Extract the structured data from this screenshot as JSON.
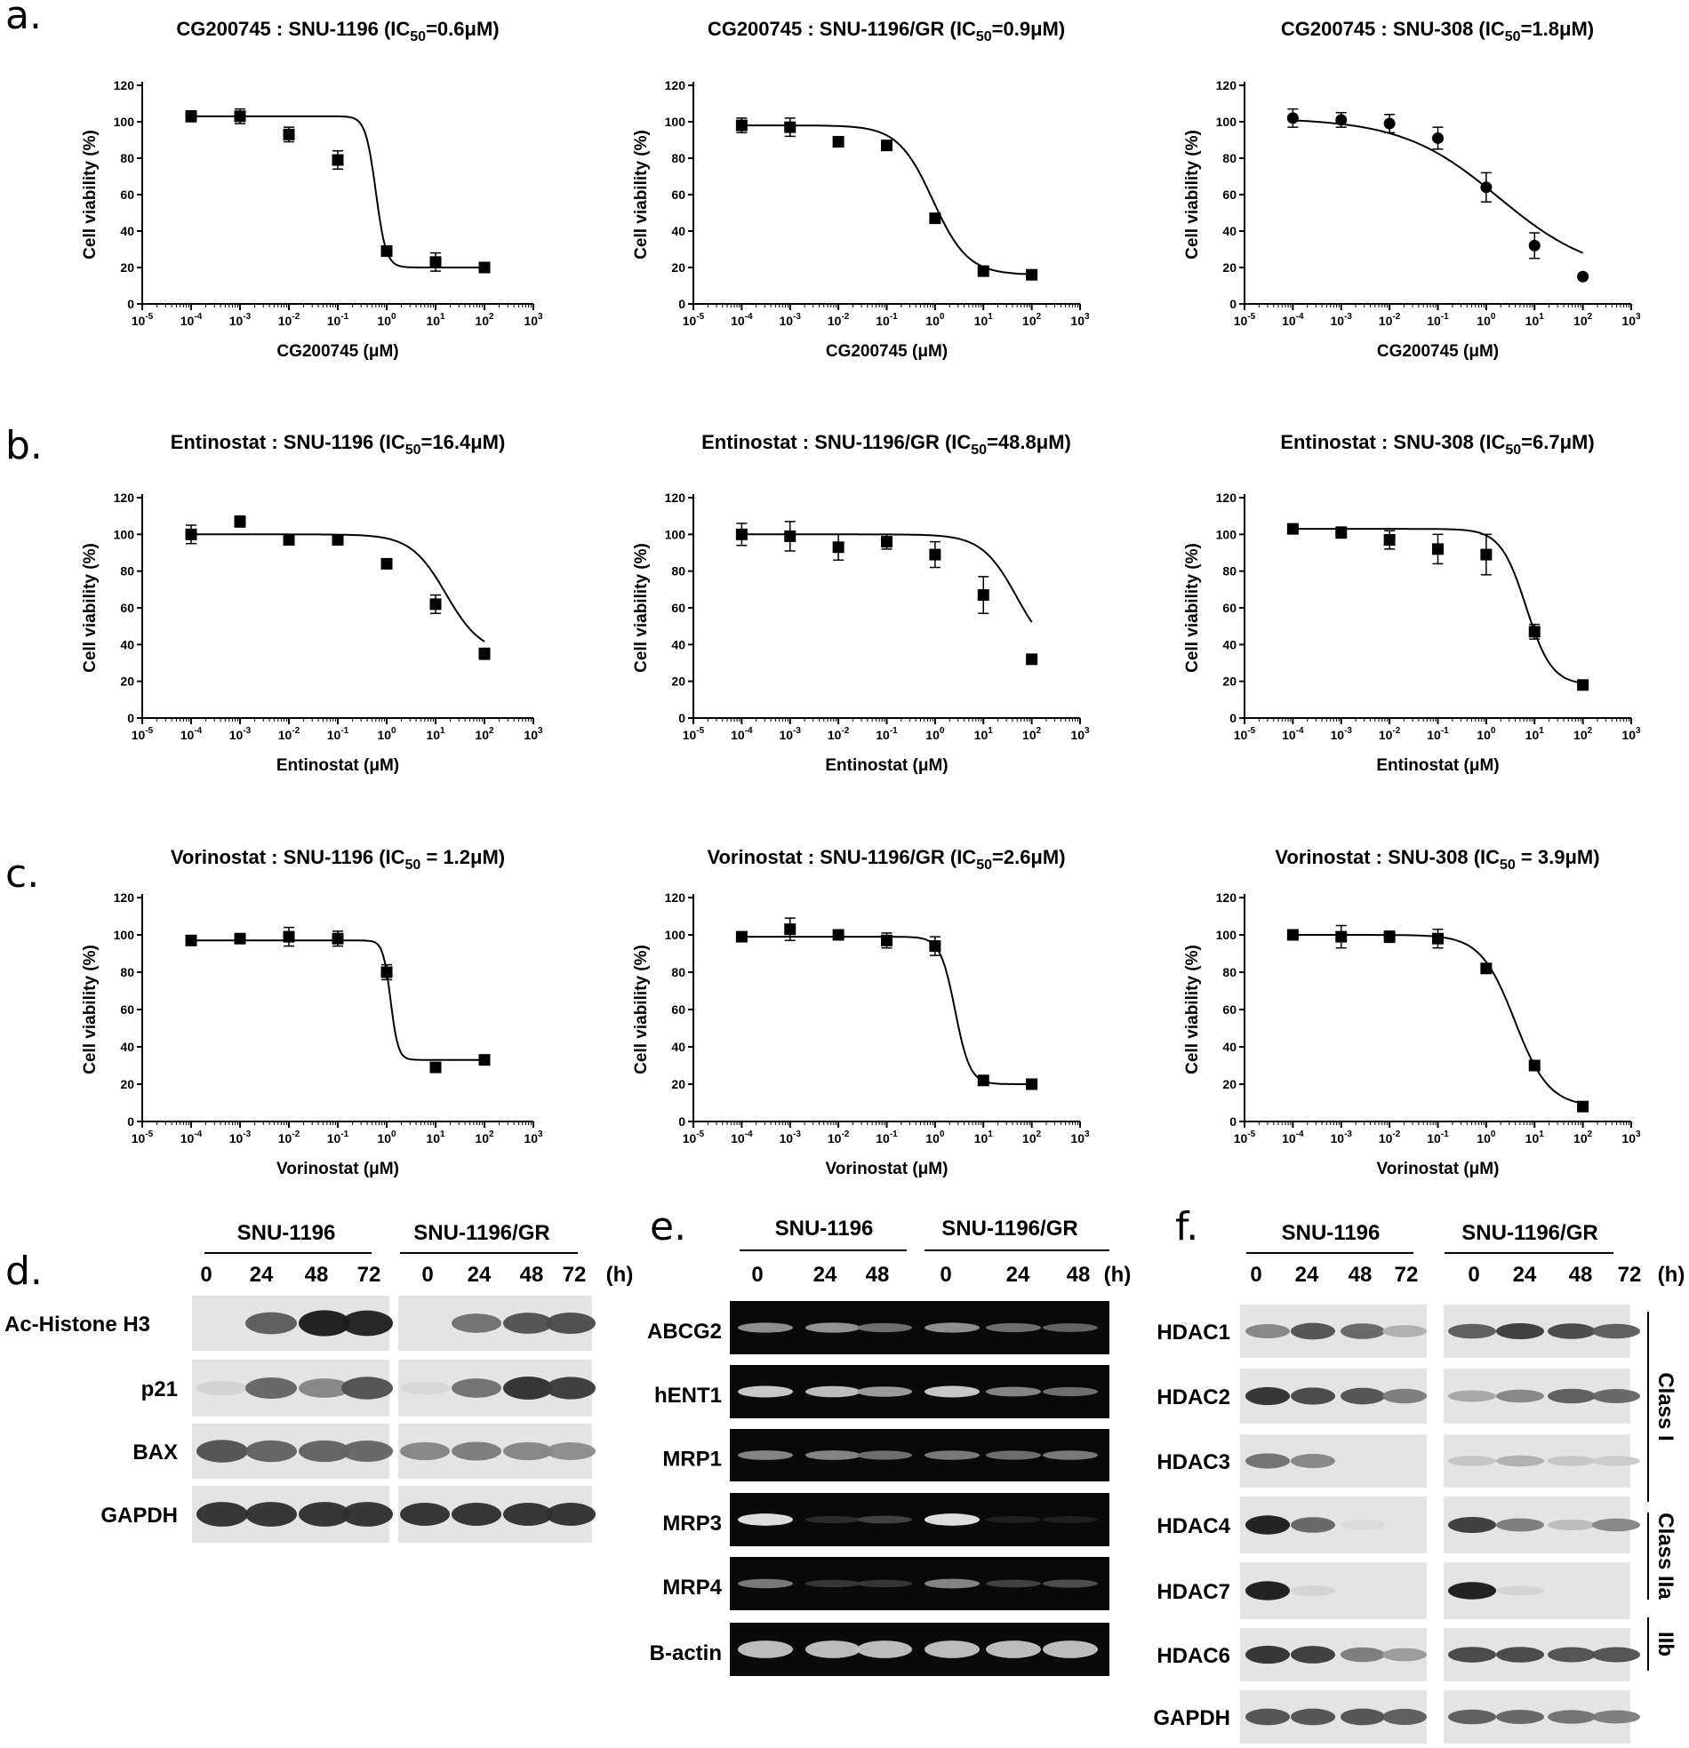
{
  "panels": [
    "a.",
    "b.",
    "c.",
    "d.",
    "e.",
    "f."
  ],
  "chart_data": [
    {
      "type": "line",
      "panel": "a",
      "title_prefix": "CG200745 :  SNU-1196 (IC",
      "title_sub": "50",
      "title_suffix": "=0.6μM)",
      "xlabel": "CG200745 (μM)",
      "ylabel": "Cell viability (%)",
      "x_ticks": [
        "10-5",
        "10-4",
        "10-3",
        "10-2",
        "10-1",
        "100",
        "101",
        "102",
        "103"
      ],
      "y_ticks": [
        "0",
        "20",
        "40",
        "60",
        "80",
        "100",
        "120"
      ],
      "xscale": "log",
      "xlim": [
        1e-05,
        1000
      ],
      "ylim": [
        0,
        120
      ],
      "ic50": 0.6,
      "marker": "square",
      "points": [
        {
          "x": 0.0001,
          "y": 103,
          "err": 3
        },
        {
          "x": 0.001,
          "y": 103,
          "err": 4
        },
        {
          "x": 0.01,
          "y": 93,
          "err": 4
        },
        {
          "x": 0.1,
          "y": 79,
          "err": 5
        },
        {
          "x": 1,
          "y": 29,
          "err": 2
        },
        {
          "x": 10,
          "y": 23,
          "err": 5
        },
        {
          "x": 100,
          "y": 20,
          "err": 1
        }
      ]
    },
    {
      "type": "line",
      "panel": "a",
      "title_prefix": "CG200745 : SNU-1196/GR (IC",
      "title_sub": "50",
      "title_suffix": "=0.9μM)",
      "xlabel": "CG200745 (μM)",
      "ylabel": "Cell viability (%)",
      "x_ticks": [
        "10-5",
        "10-4",
        "10-3",
        "10-2",
        "10-1",
        "100",
        "101",
        "102",
        "103"
      ],
      "y_ticks": [
        "0",
        "20",
        "40",
        "60",
        "80",
        "100",
        "120"
      ],
      "xscale": "log",
      "xlim": [
        1e-05,
        1000
      ],
      "ylim": [
        0,
        120
      ],
      "ic50": 0.9,
      "marker": "square",
      "points": [
        {
          "x": 0.0001,
          "y": 98,
          "err": 4
        },
        {
          "x": 0.001,
          "y": 97,
          "err": 5
        },
        {
          "x": 0.01,
          "y": 89,
          "err": 2
        },
        {
          "x": 0.1,
          "y": 87,
          "err": 1
        },
        {
          "x": 1,
          "y": 47,
          "err": 2
        },
        {
          "x": 10,
          "y": 18,
          "err": 1
        },
        {
          "x": 100,
          "y": 16,
          "err": 1
        }
      ]
    },
    {
      "type": "line",
      "panel": "a",
      "title_prefix": "CG200745 : SNU-308 (IC",
      "title_sub": "50",
      "title_suffix": "=1.8μM)",
      "xlabel": "CG200745 (μM)",
      "ylabel": "Cell viability (%)",
      "x_ticks": [
        "10-5",
        "10-4",
        "10-3",
        "10-2",
        "10-1",
        "100",
        "101",
        "102",
        "103"
      ],
      "y_ticks": [
        "0",
        "20",
        "40",
        "60",
        "80",
        "100",
        "120"
      ],
      "xscale": "log",
      "xlim": [
        1e-05,
        1000
      ],
      "ylim": [
        0,
        120
      ],
      "ic50": 1.8,
      "marker": "circle",
      "points": [
        {
          "x": 0.0001,
          "y": 102,
          "err": 5
        },
        {
          "x": 0.001,
          "y": 101,
          "err": 4
        },
        {
          "x": 0.01,
          "y": 99,
          "err": 5
        },
        {
          "x": 0.1,
          "y": 91,
          "err": 6
        },
        {
          "x": 1,
          "y": 64,
          "err": 8
        },
        {
          "x": 10,
          "y": 32,
          "err": 7
        },
        {
          "x": 100,
          "y": 15,
          "err": 1
        }
      ]
    },
    {
      "type": "line",
      "panel": "b",
      "title_prefix": "Entinostat : SNU-1196 (IC",
      "title_sub": "50",
      "title_suffix": "=16.4μM)",
      "xlabel": "Entinostat (μM)",
      "ylabel": "Cell viability (%)",
      "x_ticks": [
        "10-5",
        "10-4",
        "10-3",
        "10-2",
        "10-1",
        "100",
        "101",
        "102",
        "103"
      ],
      "y_ticks": [
        "0",
        "20",
        "40",
        "60",
        "80",
        "100",
        "120"
      ],
      "xscale": "log",
      "xlim": [
        1e-05,
        1000
      ],
      "ylim": [
        0,
        120
      ],
      "ic50": 16.4,
      "marker": "square",
      "points": [
        {
          "x": 0.0001,
          "y": 100,
          "err": 5
        },
        {
          "x": 0.001,
          "y": 107,
          "err": 3
        },
        {
          "x": 0.01,
          "y": 97,
          "err": 2
        },
        {
          "x": 0.1,
          "y": 97,
          "err": 2
        },
        {
          "x": 1,
          "y": 84,
          "err": 2
        },
        {
          "x": 10,
          "y": 62,
          "err": 5
        },
        {
          "x": 100,
          "y": 35,
          "err": 3
        }
      ]
    },
    {
      "type": "line",
      "panel": "b",
      "title_prefix": "Entinostat : SNU-1196/GR (IC",
      "title_sub": "50",
      "title_suffix": "=48.8μM)",
      "xlabel": "Entinostat (μM)",
      "ylabel": "Cell viability (%)",
      "x_ticks": [
        "10-5",
        "10-4",
        "10-3",
        "10-2",
        "10-1",
        "100",
        "101",
        "102",
        "103"
      ],
      "y_ticks": [
        "0",
        "20",
        "40",
        "60",
        "80",
        "100",
        "120"
      ],
      "xscale": "log",
      "xlim": [
        1e-05,
        1000
      ],
      "ylim": [
        0,
        120
      ],
      "ic50": 48.8,
      "marker": "square",
      "points": [
        {
          "x": 0.0001,
          "y": 100,
          "err": 6
        },
        {
          "x": 0.001,
          "y": 99,
          "err": 8
        },
        {
          "x": 0.01,
          "y": 93,
          "err": 7
        },
        {
          "x": 0.1,
          "y": 96,
          "err": 4
        },
        {
          "x": 1,
          "y": 89,
          "err": 7
        },
        {
          "x": 10,
          "y": 67,
          "err": 10
        },
        {
          "x": 100,
          "y": 32,
          "err": 2
        }
      ]
    },
    {
      "type": "line",
      "panel": "b",
      "title_prefix": "Entinostat : SNU-308 (IC",
      "title_sub": "50",
      "title_suffix": "=6.7μM)",
      "xlabel": "Entinostat (μM)",
      "ylabel": "Cell viability (%)",
      "x_ticks": [
        "10-5",
        "10-4",
        "10-3",
        "10-2",
        "10-1",
        "100",
        "101",
        "102",
        "103"
      ],
      "y_ticks": [
        "0",
        "20",
        "40",
        "60",
        "80",
        "100",
        "120"
      ],
      "xscale": "log",
      "xlim": [
        1e-05,
        1000
      ],
      "ylim": [
        0,
        120
      ],
      "ic50": 6.7,
      "marker": "square",
      "points": [
        {
          "x": 0.0001,
          "y": 103,
          "err": 1
        },
        {
          "x": 0.001,
          "y": 101,
          "err": 3
        },
        {
          "x": 0.01,
          "y": 97,
          "err": 5
        },
        {
          "x": 0.1,
          "y": 92,
          "err": 8
        },
        {
          "x": 1,
          "y": 89,
          "err": 11
        },
        {
          "x": 10,
          "y": 47,
          "err": 4
        },
        {
          "x": 100,
          "y": 18,
          "err": 1
        }
      ]
    },
    {
      "type": "line",
      "panel": "c",
      "title_prefix": "Vorinostat : SNU-1196 (IC",
      "title_sub": "50",
      "title_suffix": " = 1.2μM)",
      "xlabel": "Vorinostat (μM)",
      "ylabel": "Cell viability (%)",
      "x_ticks": [
        "10-5",
        "10-4",
        "10-3",
        "10-2",
        "10-1",
        "100",
        "101",
        "102",
        "103"
      ],
      "y_ticks": [
        "0",
        "20",
        "40",
        "60",
        "80",
        "100",
        "120"
      ],
      "xscale": "log",
      "xlim": [
        1e-05,
        1000
      ],
      "ylim": [
        0,
        120
      ],
      "ic50": 1.2,
      "marker": "square",
      "points": [
        {
          "x": 0.0001,
          "y": 97,
          "err": 1
        },
        {
          "x": 0.001,
          "y": 98,
          "err": 2
        },
        {
          "x": 0.01,
          "y": 99,
          "err": 5
        },
        {
          "x": 0.1,
          "y": 98,
          "err": 4
        },
        {
          "x": 1,
          "y": 80,
          "err": 4
        },
        {
          "x": 10,
          "y": 29,
          "err": 1
        },
        {
          "x": 100,
          "y": 33,
          "err": 1
        }
      ]
    },
    {
      "type": "line",
      "panel": "c",
      "title_prefix": "Vorinostat : SNU-1196/GR (IC",
      "title_sub": "50",
      "title_suffix": "=2.6μM)",
      "xlabel": "Vorinostat (μM)",
      "ylabel": "Cell viability (%)",
      "x_ticks": [
        "10-5",
        "10-4",
        "10-3",
        "10-2",
        "10-1",
        "100",
        "101",
        "102",
        "103"
      ],
      "y_ticks": [
        "0",
        "20",
        "40",
        "60",
        "80",
        "100",
        "120"
      ],
      "xscale": "log",
      "xlim": [
        1e-05,
        1000
      ],
      "ylim": [
        0,
        120
      ],
      "ic50": 2.6,
      "marker": "square",
      "points": [
        {
          "x": 0.0001,
          "y": 99,
          "err": 1
        },
        {
          "x": 0.001,
          "y": 103,
          "err": 6
        },
        {
          "x": 0.01,
          "y": 100,
          "err": 1
        },
        {
          "x": 0.1,
          "y": 97,
          "err": 4
        },
        {
          "x": 1,
          "y": 94,
          "err": 5
        },
        {
          "x": 10,
          "y": 22,
          "err": 1
        },
        {
          "x": 100,
          "y": 20,
          "err": 1
        }
      ]
    },
    {
      "type": "line",
      "panel": "c",
      "title_prefix": "Vorinostat : SNU-308 (IC",
      "title_sub": "50",
      "title_suffix": " = 3.9μM)",
      "xlabel": "Vorinostat (μM)",
      "ylabel": "Cell viability (%)",
      "x_ticks": [
        "10-5",
        "10-4",
        "10-3",
        "10-2",
        "10-1",
        "100",
        "101",
        "102",
        "103"
      ],
      "y_ticks": [
        "0",
        "20",
        "40",
        "60",
        "80",
        "100",
        "120"
      ],
      "xscale": "log",
      "xlim": [
        1e-05,
        1000
      ],
      "ylim": [
        0,
        120
      ],
      "ic50": 3.9,
      "marker": "square",
      "points": [
        {
          "x": 0.0001,
          "y": 100,
          "err": 2
        },
        {
          "x": 0.001,
          "y": 99,
          "err": 6
        },
        {
          "x": 0.01,
          "y": 99,
          "err": 3
        },
        {
          "x": 0.1,
          "y": 98,
          "err": 5
        },
        {
          "x": 1,
          "y": 82,
          "err": 2
        },
        {
          "x": 10,
          "y": 30,
          "err": 2
        },
        {
          "x": 100,
          "y": 8,
          "err": 1
        }
      ]
    }
  ],
  "blots": {
    "d": {
      "groups": [
        "SNU-1196",
        "SNU-1196/GR"
      ],
      "timepoints": [
        "0",
        "24",
        "48",
        "72"
      ],
      "unit": "(h)",
      "rows": [
        {
          "label": "Ac-Histone H3",
          "a": [
            0.02,
            0.65,
            0.95,
            0.92
          ],
          "b": [
            0.0,
            0.55,
            0.7,
            0.72
          ]
        },
        {
          "label": "p21",
          "a": [
            0.08,
            0.6,
            0.45,
            0.7
          ],
          "b": [
            0.06,
            0.55,
            0.85,
            0.8
          ]
        },
        {
          "label": "BAX",
          "a": [
            0.7,
            0.62,
            0.62,
            0.6
          ],
          "b": [
            0.45,
            0.5,
            0.45,
            0.42
          ]
        },
        {
          "label": "GAPDH",
          "a": [
            0.85,
            0.85,
            0.85,
            0.85
          ],
          "b": [
            0.85,
            0.85,
            0.85,
            0.85
          ]
        }
      ]
    },
    "e": {
      "groups": [
        "SNU-1196",
        "SNU-1196/GR"
      ],
      "timepoints": [
        "0",
        "24",
        "48",
        "0",
        "24",
        "48"
      ],
      "unit": "(h)",
      "rows": [
        {
          "label": "ABCG2",
          "v": [
            0.6,
            0.62,
            0.45,
            0.6,
            0.45,
            0.4
          ]
        },
        {
          "label": "hENT1",
          "v": [
            0.85,
            0.8,
            0.65,
            0.85,
            0.55,
            0.45
          ]
        },
        {
          "label": "MRP1",
          "v": [
            0.55,
            0.55,
            0.45,
            0.5,
            0.45,
            0.5
          ]
        },
        {
          "label": "MRP3",
          "v": [
            0.95,
            0.15,
            0.25,
            0.95,
            0.1,
            0.1
          ]
        },
        {
          "label": "MRP4",
          "v": [
            0.5,
            0.2,
            0.2,
            0.55,
            0.25,
            0.3
          ]
        },
        {
          "label": "B-actin",
          "v": [
            0.8,
            0.8,
            0.8,
            0.8,
            0.8,
            0.8
          ]
        }
      ]
    },
    "f": {
      "groups": [
        "SNU-1196",
        "SNU-1196/GR"
      ],
      "timepoints": [
        "0",
        "24",
        "48",
        "72"
      ],
      "unit": "(h)",
      "rows": [
        {
          "label": "HDAC1",
          "a": [
            0.45,
            0.7,
            0.6,
            0.25
          ],
          "b": [
            0.65,
            0.8,
            0.75,
            0.65
          ]
        },
        {
          "label": "HDAC2",
          "a": [
            0.85,
            0.75,
            0.7,
            0.5
          ],
          "b": [
            0.3,
            0.45,
            0.65,
            0.6
          ]
        },
        {
          "label": "HDAC3",
          "a": [
            0.55,
            0.45,
            0.0,
            0.0
          ],
          "b": [
            0.15,
            0.25,
            0.15,
            0.12
          ]
        },
        {
          "label": "HDAC4",
          "a": [
            0.95,
            0.6,
            0.05,
            0.0
          ],
          "b": [
            0.8,
            0.5,
            0.2,
            0.45
          ]
        },
        {
          "label": "HDAC7",
          "a": [
            0.95,
            0.08,
            0.0,
            0.0
          ],
          "b": [
            0.95,
            0.08,
            0.0,
            0.0
          ]
        },
        {
          "label": "HDAC6",
          "a": [
            0.85,
            0.8,
            0.5,
            0.35
          ],
          "b": [
            0.75,
            0.75,
            0.7,
            0.7
          ]
        },
        {
          "label": "GAPDH",
          "a": [
            0.7,
            0.7,
            0.7,
            0.65
          ],
          "b": [
            0.65,
            0.6,
            0.55,
            0.5
          ]
        }
      ],
      "classes": [
        "Class I",
        "Class IIa",
        "IIb"
      ]
    }
  },
  "colors": {
    "ink": "#000000",
    "blot_bg": "#e4e4e4",
    "gel_bg": "#0a0a0a"
  }
}
